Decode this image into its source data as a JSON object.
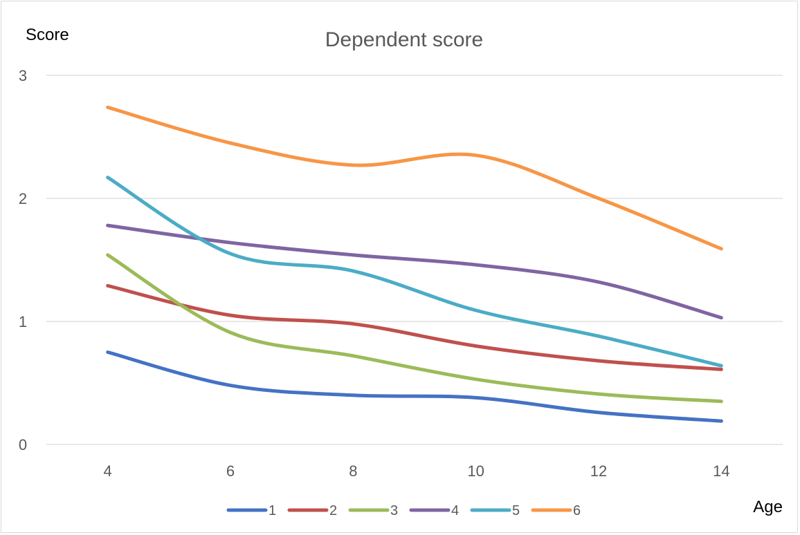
{
  "chart_data": {
    "type": "line",
    "title": "Dependent score",
    "ylabel": "Score",
    "xlabel": "Age",
    "x": [
      4,
      6,
      8,
      10,
      12,
      14
    ],
    "xticks": [
      "4",
      "6",
      "8",
      "10",
      "12",
      "14"
    ],
    "yticks": [
      "0",
      "1",
      "2",
      "3"
    ],
    "ylim": [
      0,
      3
    ],
    "xlim": [
      3,
      15
    ],
    "grid": true,
    "legend_position": "bottom",
    "smooth": true,
    "series": [
      {
        "name": "1",
        "color": "#4472c4",
        "values": [
          0.75,
          0.48,
          0.4,
          0.38,
          0.26,
          0.19
        ]
      },
      {
        "name": "2",
        "color": "#c0504d",
        "values": [
          1.29,
          1.05,
          0.98,
          0.8,
          0.68,
          0.61
        ]
      },
      {
        "name": "3",
        "color": "#9bbb59",
        "values": [
          1.54,
          0.91,
          0.72,
          0.53,
          0.41,
          0.35
        ]
      },
      {
        "name": "4",
        "color": "#8064a2",
        "values": [
          1.78,
          1.64,
          1.54,
          1.46,
          1.32,
          1.03
        ]
      },
      {
        "name": "5",
        "color": "#4bacc6",
        "values": [
          2.17,
          1.55,
          1.41,
          1.09,
          0.88,
          0.64
        ]
      },
      {
        "name": "6",
        "color": "#f79646",
        "values": [
          2.74,
          2.45,
          2.27,
          2.35,
          2.0,
          1.59
        ]
      }
    ]
  }
}
